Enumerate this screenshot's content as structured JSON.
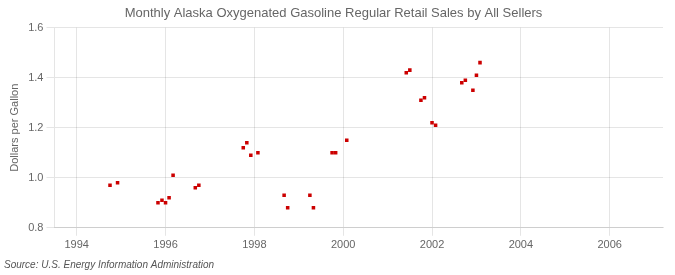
{
  "chart_data": {
    "type": "scatter",
    "title": "Monthly Alaska Oxygenated Gasoline Regular Retail Sales by All Sellers",
    "ylabel": "Dollars per Gallon",
    "annotations": [
      "Source: U.S. Energy Information Administration"
    ],
    "x": [
      1994.75,
      1994.92,
      1995.83,
      1995.92,
      1996.0,
      1996.08,
      1996.17,
      1996.67,
      1996.75,
      1997.75,
      1997.83,
      1997.92,
      1998.08,
      1998.67,
      1998.75,
      1999.25,
      1999.33,
      1999.75,
      1999.83,
      2000.08,
      2001.42,
      2001.5,
      2001.75,
      2001.83,
      2002.0,
      2002.08,
      2002.67,
      2002.75,
      2002.92,
      2003.0,
      2003.08
    ],
    "values": [
      0.97,
      0.98,
      0.9,
      0.91,
      0.9,
      0.92,
      1.01,
      0.96,
      0.97,
      1.12,
      1.14,
      1.09,
      1.1,
      0.93,
      0.88,
      0.93,
      0.88,
      1.1,
      1.1,
      1.15,
      1.42,
      1.43,
      1.31,
      1.32,
      1.22,
      1.21,
      1.38,
      1.39,
      1.35,
      1.41,
      1.46
    ],
    "color": "#cc0000",
    "marker": "square",
    "xlim": [
      1993.5,
      2007.2
    ],
    "xticks": [
      1994,
      1996,
      1998,
      2000,
      2002,
      2004,
      2006
    ],
    "ylim": [
      0.8,
      1.6
    ],
    "yticks": [
      0.8,
      {
        "value": 1.0,
        "label": "1.0"
      },
      1.2,
      1.4,
      1.6
    ],
    "grid": true
  }
}
